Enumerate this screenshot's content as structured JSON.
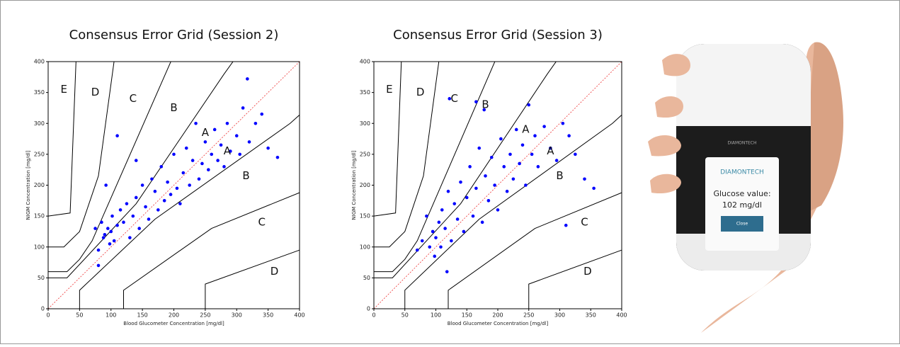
{
  "chart_data": [
    {
      "type": "scatter",
      "title": "Consensus Error Grid (Session 2)",
      "x_label": "Blood Glucometer Concentration [mg/dl]",
      "y_label": "NIGM Concentration [mg/dl]",
      "xlim": [
        0,
        400
      ],
      "ylim": [
        0,
        400
      ],
      "xticks": [
        0,
        50,
        100,
        150,
        200,
        250,
        300,
        350,
        400
      ],
      "yticks": [
        0,
        50,
        100,
        150,
        200,
        250,
        300,
        350,
        400
      ],
      "zones": [
        "E",
        "D",
        "C",
        "B",
        "A",
        "A",
        "B",
        "C",
        "D"
      ],
      "series": [
        {
          "color": "#0000ff",
          "x": [
            75,
            80,
            85,
            88,
            90,
            95,
            98,
            100,
            102,
            105,
            110,
            115,
            120,
            125,
            130,
            135,
            140,
            145,
            150,
            155,
            160,
            165,
            170,
            175,
            180,
            185,
            190,
            195,
            200,
            205,
            210,
            215,
            220,
            225,
            230,
            235,
            240,
            245,
            250,
            255,
            260,
            265,
            270,
            275,
            280,
            285,
            290,
            300,
            305,
            310,
            320,
            330,
            340,
            350,
            365,
            92,
            110,
            140,
            80,
            317
          ],
          "y": [
            130,
            95,
            140,
            115,
            120,
            130,
            105,
            125,
            150,
            110,
            135,
            160,
            140,
            170,
            115,
            150,
            180,
            130,
            200,
            165,
            145,
            210,
            190,
            160,
            230,
            175,
            205,
            185,
            250,
            195,
            170,
            220,
            260,
            200,
            240,
            300,
            210,
            235,
            270,
            225,
            250,
            290,
            240,
            265,
            230,
            300,
            255,
            280,
            250,
            325,
            270,
            300,
            315,
            260,
            245,
            200,
            280,
            240,
            70,
            372
          ]
        }
      ]
    },
    {
      "type": "scatter",
      "title": "Consensus Error Grid (Session 3)",
      "x_label": "Blood Glucometer Concentration [mg/dl]",
      "y_label": "NIGM Concentration [mg/dl]",
      "xlim": [
        0,
        400
      ],
      "ylim": [
        0,
        400
      ],
      "xticks": [
        0,
        50,
        100,
        150,
        200,
        250,
        300,
        350,
        400
      ],
      "yticks": [
        0,
        50,
        100,
        150,
        200,
        250,
        300,
        350,
        400
      ],
      "zones": [
        "E",
        "D",
        "C",
        "B",
        "A",
        "A",
        "B",
        "C",
        "D"
      ],
      "series": [
        {
          "color": "#0000ff",
          "x": [
            70,
            78,
            85,
            90,
            95,
            98,
            100,
            105,
            108,
            110,
            115,
            120,
            122,
            125,
            130,
            135,
            140,
            145,
            150,
            155,
            160,
            165,
            165,
            170,
            175,
            178,
            180,
            185,
            190,
            195,
            200,
            205,
            210,
            215,
            220,
            225,
            230,
            235,
            240,
            245,
            250,
            255,
            260,
            265,
            275,
            285,
            295,
            305,
            315,
            325,
            340,
            355,
            310,
            118
          ],
          "y": [
            95,
            110,
            150,
            100,
            125,
            85,
            115,
            140,
            100,
            160,
            130,
            190,
            340,
            110,
            170,
            145,
            205,
            125,
            180,
            230,
            150,
            335,
            195,
            260,
            140,
            322,
            215,
            175,
            245,
            200,
            160,
            275,
            230,
            190,
            250,
            210,
            290,
            235,
            265,
            200,
            330,
            250,
            280,
            230,
            295,
            260,
            240,
            300,
            280,
            250,
            210,
            195,
            135,
            60
          ]
        }
      ]
    }
  ],
  "photo": {
    "brand": "DIAMONTECH",
    "screen_brand": "DIAMONTECH",
    "reading_label": "Glucose value:",
    "reading": "102 mg/dl",
    "button": "Close"
  }
}
